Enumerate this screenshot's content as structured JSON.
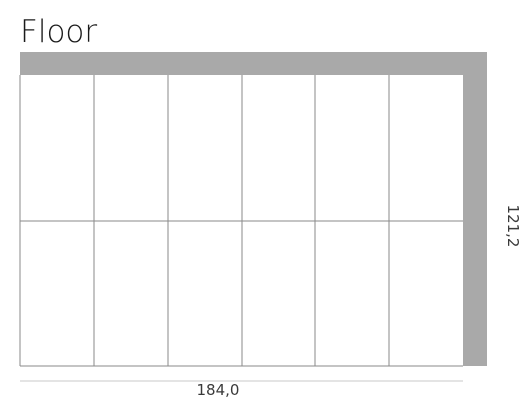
{
  "title": "Floor",
  "dimensions": {
    "width_label": "184,0",
    "height_label": "121,2"
  },
  "layout_grid": {
    "columns": 6,
    "rows": 2
  },
  "colors": {
    "wall": "#a9a9a9",
    "grid_line": "#8a8a8a",
    "background": "#ffffff"
  }
}
